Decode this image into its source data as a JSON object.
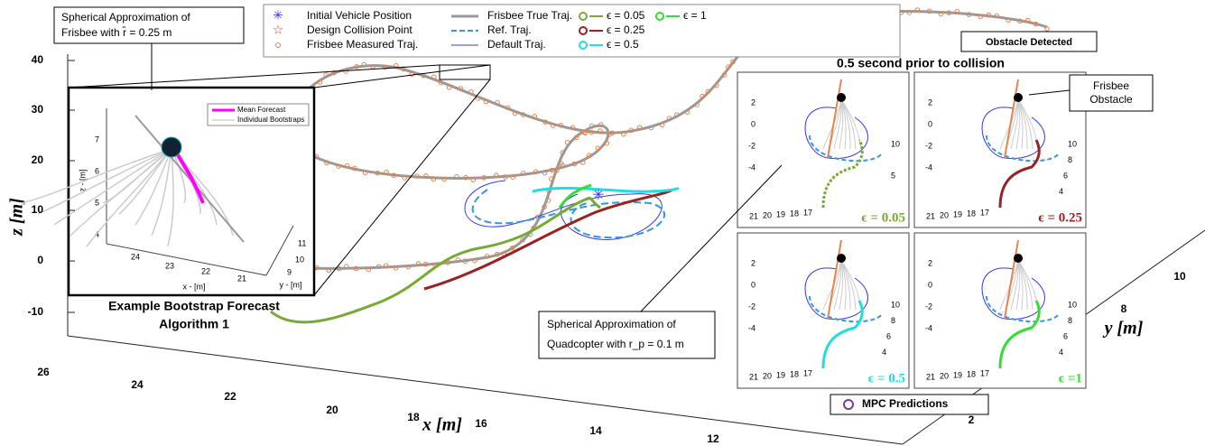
{
  "legend": {
    "items": [
      "Initial Vehicle Position",
      "Design Collision Point",
      "Frisbee Measured Traj.",
      "Frisbee True Traj.",
      "Ref. Traj.",
      "Default Traj.",
      "ϵ = 0.05",
      "ϵ = 0.25",
      "ϵ = 0.5",
      "ϵ = 1"
    ]
  },
  "main_axes": {
    "z_label": "z [m]",
    "x_label": "x [m]",
    "y_label": "y [m]",
    "z_ticks": [
      "40",
      "30",
      "20",
      "10",
      "0",
      "-10"
    ],
    "x_ticks": [
      "26",
      "24",
      "22",
      "20",
      "18",
      "16",
      "14",
      "12"
    ],
    "y_ticks": [
      "10",
      "8",
      "2"
    ]
  },
  "inset": {
    "callout": [
      "Spherical Approximation of",
      "Frisbee with r̂ = 0.25 m"
    ],
    "legend": [
      "Mean Forecast",
      "Individual Bootstraps"
    ],
    "z_label": "z - [m]",
    "x_label": "x - [m]",
    "y_label": "y - [m]",
    "z_ticks": [
      "7",
      "6",
      "5",
      "4"
    ],
    "x_ticks": [
      "24",
      "23",
      "22",
      "21"
    ],
    "y_ticks": [
      "11",
      "10",
      "9"
    ],
    "caption": [
      "Example Bootstrap Forecast",
      "Algorithm 1"
    ]
  },
  "panels": {
    "obstacle_detected": "Obstacle Detected",
    "title": "0.5 second prior to collision",
    "frisbee_obstacle": [
      "Frisbee",
      "Obstacle"
    ],
    "labels": [
      "ϵ = 0.05",
      "ϵ = 0.25",
      "ϵ = 0.5",
      "ϵ =1"
    ],
    "z_ticks": [
      "2",
      "0",
      "-2",
      "-4"
    ],
    "x_ticks": [
      "21",
      "20",
      "19",
      "18",
      "17"
    ],
    "y_ticks": [
      [
        "10",
        "5"
      ],
      [
        "10",
        "8",
        "6",
        "4"
      ],
      [
        "10",
        "8",
        "6",
        "4"
      ],
      [
        "10",
        "8",
        "6",
        "4"
      ]
    ]
  },
  "quad_callout": [
    "Spherical Approximation of",
    "Quadcopter with r_p = 0.1 m"
  ],
  "mpc": "MPC Predictions"
}
